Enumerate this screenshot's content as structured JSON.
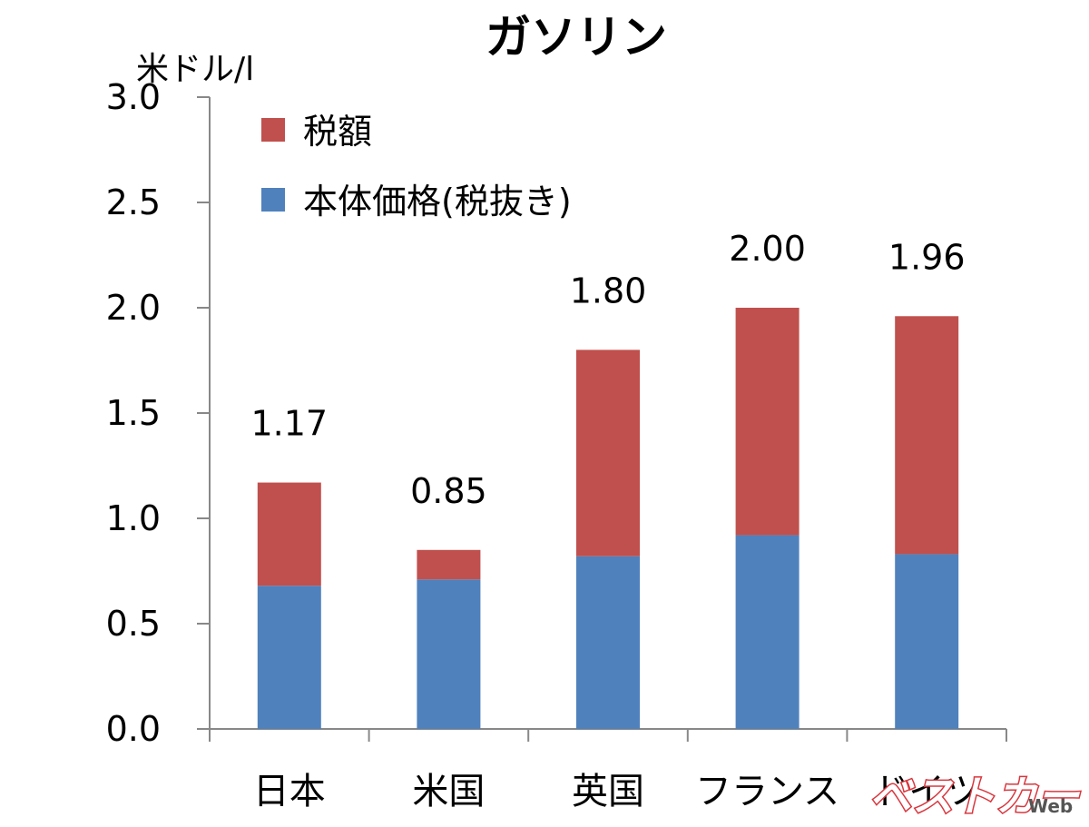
{
  "chart_data": {
    "type": "bar",
    "stacked": true,
    "title": "ガソリン",
    "ylabel": "米ドル/l",
    "xlabel": "",
    "ylim": [
      0,
      3.0
    ],
    "yticks": [
      "0.0",
      "0.5",
      "1.0",
      "1.5",
      "2.0",
      "2.5",
      "3.0"
    ],
    "categories": [
      "日本",
      "米国",
      "英国",
      "フランス",
      "ドイツ"
    ],
    "series": [
      {
        "name": "本体価格(税抜き)",
        "color": "#4f81bd",
        "values": [
          0.68,
          0.71,
          0.82,
          0.92,
          0.83
        ]
      },
      {
        "name": "税額",
        "color": "#c0504d",
        "values": [
          0.49,
          0.14,
          0.98,
          1.08,
          1.13
        ]
      }
    ],
    "totals": [
      1.17,
      0.85,
      1.8,
      2.0,
      1.96
    ],
    "total_labels": [
      "1.17",
      "0.85",
      "1.80",
      "2.00",
      "1.96"
    ],
    "legend_position": "top-left",
    "grid": false
  },
  "legend": {
    "tax_label": "税額",
    "base_label": "本体価格(税抜き)"
  },
  "watermark": {
    "brand": "ベストカー",
    "suffix": "Web"
  }
}
